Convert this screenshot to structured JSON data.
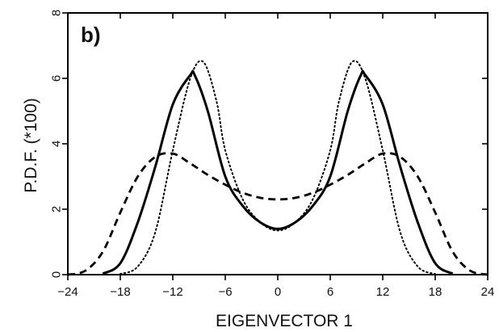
{
  "chart_data": {
    "type": "line",
    "panel_label": "b)",
    "title": "",
    "xlabel": "EIGENVECTOR 1",
    "ylabel": "P.D.F. (*100)",
    "xlim": [
      -24,
      24
    ],
    "ylim": [
      0,
      8
    ],
    "x_ticks": [
      -24,
      -18,
      -12,
      -6,
      0,
      6,
      12,
      18,
      24
    ],
    "x_tick_labels": [
      "−24",
      "−18",
      "−12",
      "−6",
      "0",
      "6",
      "12",
      "18",
      "24"
    ],
    "y_ticks": [
      0,
      2,
      4,
      6,
      8
    ],
    "y_tick_labels": [
      "0",
      "2",
      "4",
      "6",
      "8"
    ],
    "grid": false,
    "legend": "none",
    "series": [
      {
        "style": "solid",
        "color": "#000000",
        "x": [
          -20,
          -18,
          -16,
          -14,
          -12,
          -10,
          -9.5,
          -8,
          -6,
          -4,
          -2,
          0,
          2,
          4,
          6,
          8,
          9.5,
          10,
          12,
          14,
          16,
          18,
          20
        ],
        "y": [
          0.03,
          0.35,
          1.6,
          3.3,
          5.2,
          6.1,
          6.1,
          5.0,
          3.0,
          2.1,
          1.6,
          1.4,
          1.6,
          2.1,
          3.0,
          5.0,
          6.1,
          6.1,
          5.2,
          3.3,
          1.6,
          0.35,
          0.03
        ]
      },
      {
        "style": "dashed",
        "color": "#000000",
        "x": [
          -24,
          -22,
          -20,
          -18,
          -16,
          -14,
          -12,
          -10,
          -8,
          -6,
          -4,
          -2,
          0,
          2,
          4,
          6,
          8,
          10,
          12,
          14,
          16,
          18,
          20,
          22,
          24
        ],
        "y": [
          0.0,
          0.12,
          0.7,
          1.9,
          3.0,
          3.6,
          3.7,
          3.4,
          3.05,
          2.75,
          2.5,
          2.35,
          2.3,
          2.35,
          2.5,
          2.75,
          3.05,
          3.4,
          3.7,
          3.6,
          3.0,
          1.9,
          0.7,
          0.12,
          0.0
        ]
      },
      {
        "style": "dotted",
        "color": "#000000",
        "x": [
          -18,
          -16,
          -14,
          -12,
          -10,
          -8.5,
          -7,
          -6,
          -4,
          -2,
          0,
          2,
          4,
          6,
          7,
          8.5,
          10,
          12,
          14,
          16,
          18
        ],
        "y": [
          0.02,
          0.25,
          1.3,
          3.8,
          6.0,
          6.5,
          5.3,
          3.8,
          2.3,
          1.6,
          1.35,
          1.6,
          2.3,
          3.8,
          5.3,
          6.5,
          6.0,
          3.8,
          1.3,
          0.25,
          0.02
        ]
      }
    ]
  }
}
